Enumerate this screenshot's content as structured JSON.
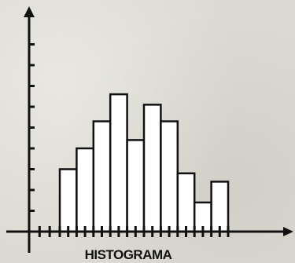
{
  "chart_data": {
    "type": "bar",
    "title": "HISTOGRAMA",
    "xlabel": "",
    "ylabel": "",
    "grid": false,
    "ylim": [
      0,
      10
    ],
    "y_ticks": [
      1,
      2,
      3,
      4,
      5,
      6,
      7,
      8,
      9
    ],
    "bin_edges": [
      1,
      2,
      3,
      4,
      5,
      6,
      7,
      8,
      9,
      10,
      11
    ],
    "values": [
      3,
      4,
      5.3,
      6.6,
      4.4,
      6.1,
      5.3,
      2.8,
      1.4,
      2.4
    ],
    "colors": {
      "bar_fill": "#ffffff",
      "stroke": "#111111",
      "background": "#dcdad2"
    }
  }
}
